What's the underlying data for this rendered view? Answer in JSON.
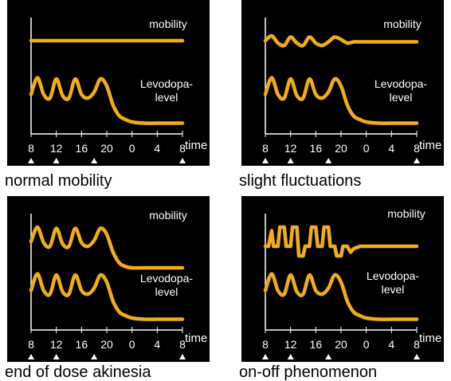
{
  "chart_data": [
    {
      "type": "line",
      "caption": "normal mobility",
      "series": [
        {
          "name": "mobility",
          "x": [
            8,
            10,
            12,
            14,
            16,
            18,
            20,
            22,
            0,
            2,
            4,
            6,
            8
          ],
          "values": [
            0.78,
            0.78,
            0.78,
            0.78,
            0.78,
            0.78,
            0.78,
            0.78,
            0.78,
            0.78,
            0.78,
            0.78,
            0.78
          ]
        },
        {
          "name": "Levodopa-level",
          "x": [
            8,
            9,
            10,
            11,
            12,
            13,
            14,
            15,
            16,
            17,
            18,
            19,
            20,
            21,
            22,
            23,
            0,
            2,
            4,
            6,
            8
          ],
          "values": [
            0.33,
            0.47,
            0.33,
            0.3,
            0.46,
            0.32,
            0.3,
            0.46,
            0.33,
            0.3,
            0.35,
            0.46,
            0.4,
            0.24,
            0.15,
            0.12,
            0.1,
            0.09,
            0.09,
            0.09,
            0.09
          ]
        }
      ]
    },
    {
      "type": "line",
      "caption": "slight fluctuations",
      "series": [
        {
          "name": "mobility",
          "x": [
            8,
            9,
            10,
            11,
            12,
            13,
            14,
            15,
            16,
            17,
            18,
            19,
            20,
            21,
            22,
            23,
            0,
            2,
            4,
            6,
            8
          ],
          "values": [
            0.78,
            0.82,
            0.76,
            0.74,
            0.81,
            0.76,
            0.74,
            0.81,
            0.76,
            0.74,
            0.77,
            0.81,
            0.79,
            0.76,
            0.77,
            0.77,
            0.77,
            0.77,
            0.77,
            0.77,
            0.77
          ]
        },
        {
          "name": "Levodopa-level",
          "x": [
            8,
            9,
            10,
            11,
            12,
            13,
            14,
            15,
            16,
            17,
            18,
            19,
            20,
            21,
            22,
            23,
            0,
            2,
            4,
            6,
            8
          ],
          "values": [
            0.33,
            0.47,
            0.33,
            0.3,
            0.46,
            0.32,
            0.3,
            0.46,
            0.33,
            0.3,
            0.35,
            0.46,
            0.4,
            0.24,
            0.15,
            0.12,
            0.1,
            0.09,
            0.09,
            0.09,
            0.09
          ]
        }
      ]
    },
    {
      "type": "line",
      "caption": "end of dose akinesia",
      "series": [
        {
          "name": "mobility",
          "x": [
            8,
            9,
            10,
            11,
            12,
            13,
            14,
            15,
            16,
            17,
            18,
            19,
            20,
            21,
            22,
            23,
            0,
            2,
            4,
            6,
            8
          ],
          "values": [
            0.74,
            0.86,
            0.73,
            0.7,
            0.85,
            0.72,
            0.7,
            0.85,
            0.73,
            0.7,
            0.75,
            0.85,
            0.8,
            0.65,
            0.56,
            0.53,
            0.52,
            0.52,
            0.52,
            0.52,
            0.52
          ]
        },
        {
          "name": "Levodopa-level",
          "x": [
            8,
            9,
            10,
            11,
            12,
            13,
            14,
            15,
            16,
            17,
            18,
            19,
            20,
            21,
            22,
            23,
            0,
            2,
            4,
            6,
            8
          ],
          "values": [
            0.33,
            0.47,
            0.33,
            0.3,
            0.46,
            0.32,
            0.3,
            0.46,
            0.33,
            0.3,
            0.35,
            0.46,
            0.4,
            0.24,
            0.15,
            0.12,
            0.1,
            0.09,
            0.09,
            0.09,
            0.09
          ]
        }
      ]
    },
    {
      "type": "line",
      "caption": "on-off phenomenon",
      "series": [
        {
          "name": "mobility",
          "x": [
            8,
            8.5,
            9,
            9.3,
            10,
            10.3,
            11,
            11.3,
            12,
            12.3,
            13,
            13.3,
            14,
            14.3,
            15,
            15.3,
            16,
            16.3,
            17,
            17.3,
            18,
            18.3,
            19,
            19.3,
            20,
            20.3,
            21,
            21.5,
            22,
            23,
            0,
            2,
            4,
            6,
            8
          ],
          "values": [
            0.7,
            0.7,
            0.83,
            0.7,
            0.7,
            0.86,
            0.86,
            0.7,
            0.7,
            0.86,
            0.86,
            0.62,
            0.62,
            0.7,
            0.7,
            0.86,
            0.86,
            0.7,
            0.7,
            0.86,
            0.86,
            0.7,
            0.7,
            0.62,
            0.62,
            0.7,
            0.7,
            0.65,
            0.68,
            0.7,
            0.7,
            0.7,
            0.7,
            0.7,
            0.7
          ]
        },
        {
          "name": "Levodopa-level",
          "x": [
            8,
            9,
            10,
            11,
            12,
            13,
            14,
            15,
            16,
            17,
            18,
            19,
            20,
            21,
            22,
            23,
            0,
            2,
            4,
            6,
            8
          ],
          "values": [
            0.33,
            0.47,
            0.33,
            0.3,
            0.46,
            0.32,
            0.3,
            0.46,
            0.33,
            0.3,
            0.35,
            0.46,
            0.4,
            0.24,
            0.15,
            0.12,
            0.1,
            0.09,
            0.09,
            0.09,
            0.09
          ]
        }
      ]
    }
  ],
  "labels": {
    "mobility": "mobility",
    "levodopa_line1": "Levodopa-",
    "levodopa_line2": "level",
    "time": "time"
  },
  "x_ticks": [
    "8",
    "12",
    "16",
    "20",
    "0",
    "4",
    "8"
  ],
  "dose_markers": [
    "8",
    "12",
    "18",
    "8"
  ],
  "colors": {
    "curve": "#f2ad17",
    "background": "#000000",
    "axis": "#ffffff"
  }
}
